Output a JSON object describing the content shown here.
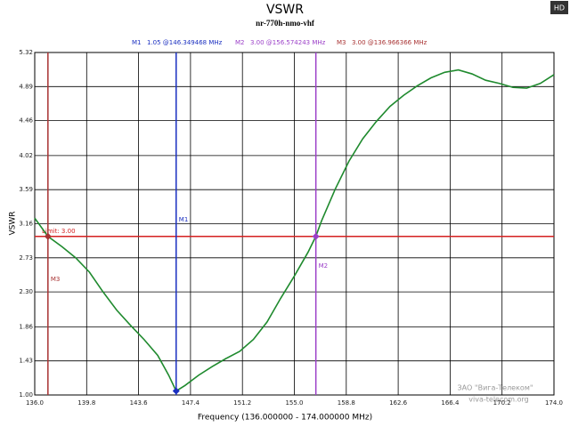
{
  "chart_data": {
    "type": "line",
    "title": "VSWR",
    "subtitle": "nr-770h-nmo-vhf",
    "x_label": "Frequency (136.000000 - 174.000000 MHz)",
    "y_label": "VSWR",
    "badge": "HD",
    "watermark": [
      "ЗАО \"Вига-Телеком\"",
      "viva-telecom.org"
    ],
    "xlim": [
      136,
      174
    ],
    "ylim": [
      1,
      5.32
    ],
    "xticks": [
      {
        "value": 136,
        "label": "136.0"
      },
      139.8,
      143.6,
      147.4,
      151.2,
      {
        "value": 155,
        "label": "155.0"
      },
      158.8,
      162.6,
      166.4,
      170.2,
      {
        "value": 174,
        "label": "174.0"
      }
    ],
    "yticks": [
      {
        "value": 1,
        "label": "1.00"
      },
      1.43,
      1.86,
      {
        "value": 2.3,
        "label": "2.30"
      },
      2.73,
      3.16,
      3.59,
      4.02,
      4.46,
      4.89,
      5.32
    ],
    "grid": true,
    "series": [
      {
        "color": "#1f8a2e",
        "x": [
          136.0,
          136.97,
          138.0,
          139.0,
          140.0,
          141.0,
          142.0,
          143.0,
          144.0,
          145.0,
          145.8,
          146.35,
          147.0,
          148.0,
          149.0,
          150.0,
          151.0,
          152.0,
          153.0,
          154.0,
          155.0,
          156.0,
          156.57,
          157.0,
          158.0,
          159.0,
          160.0,
          161.0,
          162.0,
          163.0,
          164.0,
          165.0,
          166.0,
          167.0,
          168.0,
          169.0,
          170.0,
          171.0,
          172.0,
          173.0,
          174.0
        ],
        "values": [
          3.23,
          3.0,
          2.87,
          2.73,
          2.55,
          2.3,
          2.07,
          1.88,
          1.7,
          1.5,
          1.25,
          1.05,
          1.12,
          1.25,
          1.36,
          1.46,
          1.55,
          1.7,
          1.92,
          2.22,
          2.5,
          2.8,
          3.0,
          3.2,
          3.6,
          3.95,
          4.23,
          4.45,
          4.64,
          4.78,
          4.9,
          5.0,
          5.07,
          5.1,
          5.05,
          4.97,
          4.93,
          4.88,
          4.87,
          4.93,
          5.04
        ]
      }
    ],
    "limit": {
      "value": 3,
      "label": "Limit: 3.00",
      "color": "#d42020"
    },
    "markers": [
      {
        "name": "M1",
        "readout": "1.05 @146.349468 MHz",
        "x": 146.349468,
        "y": 1.05,
        "color": "#1a2fc0"
      },
      {
        "name": "M2",
        "readout": "3.00 @156.574243 MHz",
        "x": 156.574243,
        "y": 3.0,
        "color": "#9b3fc8"
      },
      {
        "name": "M3",
        "readout": "3.00 @136.966366 MHz",
        "x": 136.966366,
        "y": 3.0,
        "color": "#a83232"
      }
    ]
  }
}
